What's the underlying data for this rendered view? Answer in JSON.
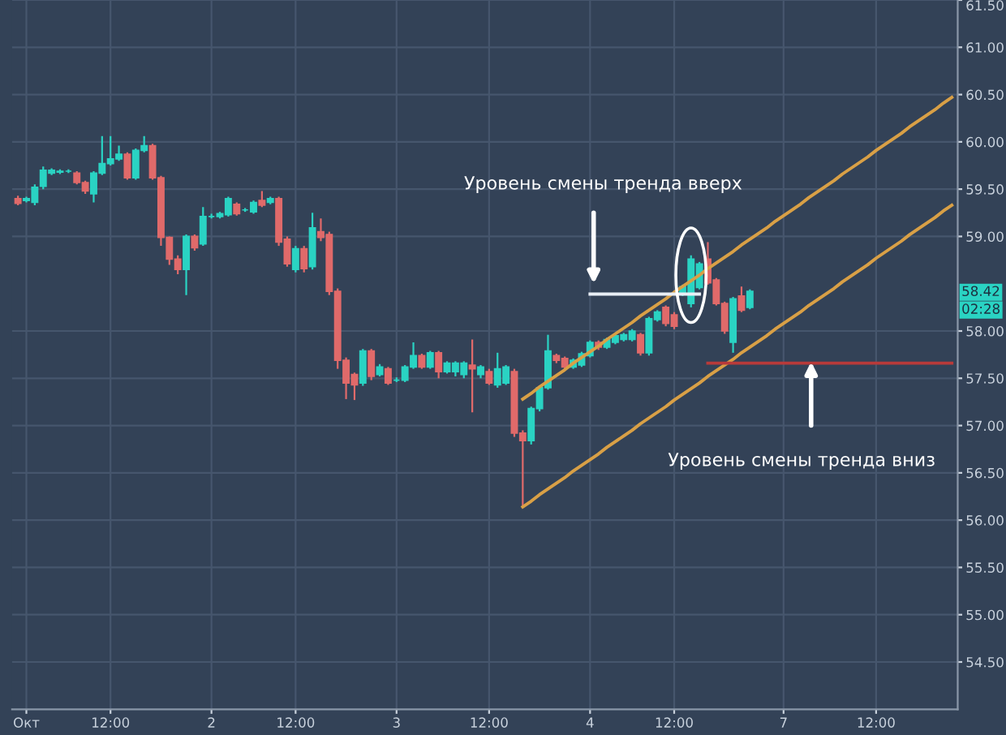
{
  "chart_data": {
    "type": "candlestick",
    "categories": [
      null,
      "Окт",
      null,
      null,
      null,
      null,
      null,
      null,
      null,
      null,
      null,
      "12:00",
      null,
      null,
      null,
      null,
      null,
      null,
      null,
      null,
      null,
      null,
      null,
      "2",
      null,
      null,
      null,
      null,
      null,
      null,
      null,
      null,
      null,
      "12:00",
      null,
      null,
      null,
      null,
      null,
      null,
      null,
      null,
      null,
      null,
      null,
      "3",
      null,
      null,
      null,
      null,
      null,
      null,
      null,
      null,
      null,
      null,
      "12:00",
      null,
      null,
      null,
      null,
      null,
      null,
      null,
      null,
      null,
      null,
      null,
      "4",
      null,
      null,
      null,
      null,
      null,
      null,
      null,
      null,
      null,
      "12:00",
      null,
      null,
      null,
      null,
      null,
      null,
      null,
      null,
      null,
      null,
      null,
      null,
      "7",
      null,
      null,
      null,
      null,
      null,
      null,
      null,
      null,
      null,
      null,
      "12:00",
      null,
      null,
      null,
      null,
      null,
      null,
      null,
      null,
      null
    ],
    "ohlc": [
      [
        59.4,
        59.43,
        59.33,
        59.35
      ],
      [
        59.38,
        59.42,
        59.36,
        59.4
      ],
      [
        59.36,
        59.55,
        59.33,
        59.52
      ],
      [
        59.53,
        59.74,
        59.5,
        59.7
      ],
      [
        59.67,
        59.72,
        59.65,
        59.7
      ],
      [
        59.68,
        59.71,
        59.66,
        59.69
      ],
      [
        59.69,
        59.71,
        59.67,
        59.69
      ],
      [
        59.67,
        59.69,
        59.55,
        59.57
      ],
      [
        59.57,
        59.59,
        59.45,
        59.48
      ],
      [
        59.45,
        59.69,
        59.36,
        59.67
      ],
      [
        59.67,
        60.06,
        59.65,
        59.77
      ],
      [
        59.77,
        60.06,
        59.75,
        59.82
      ],
      [
        59.82,
        59.96,
        59.8,
        59.87
      ],
      [
        59.87,
        59.89,
        59.6,
        59.62
      ],
      [
        59.62,
        59.93,
        59.6,
        59.91
      ],
      [
        59.91,
        60.06,
        59.89,
        59.96
      ],
      [
        59.96,
        59.98,
        59.6,
        59.62
      ],
      [
        59.62,
        59.64,
        58.9,
        58.99
      ],
      [
        58.99,
        59.0,
        58.7,
        58.76
      ],
      [
        58.76,
        58.8,
        58.6,
        58.65
      ],
      [
        58.65,
        59.02,
        58.38,
        59.0
      ],
      [
        59.0,
        59.02,
        58.85,
        58.88
      ],
      [
        58.92,
        59.31,
        58.9,
        59.21
      ],
      [
        59.21,
        59.24,
        59.19,
        59.21
      ],
      [
        59.21,
        59.26,
        59.19,
        59.24
      ],
      [
        59.23,
        59.42,
        59.21,
        59.4
      ],
      [
        59.34,
        59.36,
        59.22,
        59.24
      ],
      [
        59.28,
        59.3,
        59.26,
        59.28
      ],
      [
        59.26,
        59.38,
        59.24,
        59.36
      ],
      [
        59.38,
        59.48,
        59.31,
        59.33
      ],
      [
        59.36,
        59.42,
        59.34,
        59.4
      ],
      [
        59.4,
        59.42,
        58.9,
        58.94
      ],
      [
        58.97,
        59.0,
        58.68,
        58.71
      ],
      [
        58.65,
        58.9,
        58.62,
        58.87
      ],
      [
        58.87,
        58.9,
        58.62,
        58.66
      ],
      [
        58.68,
        59.25,
        58.65,
        59.09
      ],
      [
        59.05,
        59.19,
        58.95,
        58.99
      ],
      [
        59.02,
        59.05,
        58.38,
        58.42
      ],
      [
        58.42,
        58.45,
        57.6,
        57.69
      ],
      [
        57.69,
        57.72,
        57.28,
        57.45
      ],
      [
        57.54,
        57.56,
        57.27,
        57.43
      ],
      [
        57.45,
        57.81,
        57.42,
        57.79
      ],
      [
        57.79,
        57.81,
        57.48,
        57.52
      ],
      [
        57.54,
        57.65,
        57.52,
        57.62
      ],
      [
        57.6,
        57.62,
        57.43,
        57.45
      ],
      [
        57.48,
        57.51,
        57.46,
        57.48
      ],
      [
        57.48,
        57.64,
        57.46,
        57.62
      ],
      [
        57.62,
        57.88,
        57.6,
        57.74
      ],
      [
        57.74,
        57.76,
        57.6,
        57.62
      ],
      [
        57.62,
        57.79,
        57.6,
        57.77
      ],
      [
        57.77,
        57.79,
        57.5,
        57.57
      ],
      [
        57.57,
        57.68,
        57.55,
        57.66
      ],
      [
        57.57,
        57.68,
        57.52,
        57.66
      ],
      [
        57.54,
        57.68,
        57.5,
        57.66
      ],
      [
        57.64,
        57.91,
        57.14,
        57.6
      ],
      [
        57.54,
        57.64,
        57.5,
        57.62
      ],
      [
        57.57,
        57.6,
        57.43,
        57.45
      ],
      [
        57.43,
        57.77,
        57.4,
        57.6
      ],
      [
        57.45,
        57.64,
        57.43,
        57.62
      ],
      [
        57.57,
        57.6,
        56.88,
        56.92
      ],
      [
        56.92,
        56.95,
        56.15,
        56.84
      ],
      [
        56.84,
        57.2,
        56.8,
        57.18
      ],
      [
        57.18,
        57.42,
        57.15,
        57.4
      ],
      [
        57.4,
        57.96,
        57.38,
        57.79
      ],
      [
        57.74,
        57.76,
        57.66,
        57.69
      ],
      [
        57.71,
        57.73,
        57.6,
        57.62
      ],
      [
        57.62,
        57.71,
        57.6,
        57.69
      ],
      [
        57.64,
        57.78,
        57.62,
        57.76
      ],
      [
        57.74,
        57.9,
        57.72,
        57.88
      ],
      [
        57.88,
        57.9,
        57.8,
        57.83
      ],
      [
        57.83,
        57.93,
        57.81,
        57.91
      ],
      [
        57.88,
        57.97,
        57.86,
        57.95
      ],
      [
        57.91,
        57.98,
        57.89,
        57.96
      ],
      [
        57.91,
        58.02,
        57.89,
        58.0
      ],
      [
        57.96,
        57.98,
        57.74,
        57.77
      ],
      [
        57.77,
        58.15,
        57.74,
        58.13
      ],
      [
        58.12,
        58.22,
        58.1,
        58.2
      ],
      [
        58.25,
        58.27,
        58.05,
        58.08
      ],
      [
        58.17,
        58.2,
        58.02,
        58.05
      ],
      [
        58.39,
        58.49,
        58.37,
        58.47
      ],
      [
        58.29,
        58.8,
        58.25,
        58.76
      ],
      [
        58.46,
        58.73,
        58.44,
        58.71
      ],
      [
        58.76,
        58.94,
        58.49,
        58.51
      ],
      [
        58.54,
        58.56,
        58.27,
        58.29
      ],
      [
        58.29,
        58.31,
        57.97,
        58.0
      ],
      [
        57.88,
        58.36,
        57.77,
        58.34
      ],
      [
        58.37,
        58.47,
        58.2,
        58.22
      ],
      [
        58.25,
        58.44,
        58.23,
        58.42
      ],
      null,
      null,
      null,
      null,
      null,
      null,
      null,
      null,
      null,
      null,
      null,
      null,
      null,
      null,
      null,
      null,
      null,
      null,
      null,
      null,
      null,
      null,
      null,
      null
    ],
    "colors": [
      "#e06a6a",
      "#2ad3c3",
      "#2ad3c3",
      "#2ad3c3",
      "#2ad3c3",
      "#2ad3c3",
      "#2ad3c3",
      "#e06a6a",
      "#e06a6a",
      "#2ad3c3",
      "#2ad3c3",
      "#2ad3c3",
      "#2ad3c3",
      "#e06a6a",
      "#2ad3c3",
      "#2ad3c3",
      "#e06a6a",
      "#e06a6a",
      "#e06a6a",
      "#e06a6a",
      "#2ad3c3",
      "#e06a6a",
      "#2ad3c3",
      "#2ad3c3",
      "#2ad3c3",
      "#2ad3c3",
      "#e06a6a",
      "#2ad3c3",
      "#2ad3c3",
      "#e06a6a",
      "#2ad3c3",
      "#e06a6a",
      "#e06a6a",
      "#2ad3c3",
      "#e06a6a",
      "#2ad3c3",
      "#e06a6a",
      "#e06a6a",
      "#e06a6a",
      "#e06a6a",
      "#e06a6a",
      "#2ad3c3",
      "#e06a6a",
      "#2ad3c3",
      "#e06a6a",
      "#2ad3c3",
      "#2ad3c3",
      "#2ad3c3",
      "#e06a6a",
      "#2ad3c3",
      "#e06a6a",
      "#2ad3c3",
      "#2ad3c3",
      "#2ad3c3",
      "#e06a6a",
      "#2ad3c3",
      "#e06a6a",
      "#2ad3c3",
      "#2ad3c3",
      "#e06a6a",
      "#e06a6a",
      "#2ad3c3",
      "#2ad3c3",
      "#2ad3c3",
      "#e06a6a",
      "#e06a6a",
      "#2ad3c3",
      "#2ad3c3",
      "#2ad3c3",
      "#e06a6a",
      "#2ad3c3",
      "#2ad3c3",
      "#2ad3c3",
      "#2ad3c3",
      "#e06a6a",
      "#2ad3c3",
      "#2ad3c3",
      "#e06a6a",
      "#e06a6a",
      "#2ad3c3",
      "#2ad3c3",
      "#2ad3c3",
      "#e06a6a",
      "#e06a6a",
      "#e06a6a",
      "#2ad3c3",
      "#e06a6a",
      "#2ad3c3",
      null,
      null,
      null,
      null,
      null,
      null,
      null,
      null,
      null,
      null,
      null,
      null,
      null,
      null,
      null,
      null,
      null,
      null,
      null,
      null,
      null,
      null,
      null,
      null
    ],
    "series": [
      {
        "type": "line",
        "color": "#d9a046",
        "values": [
          null,
          null,
          null,
          null,
          null,
          null,
          null,
          null,
          null,
          null,
          null,
          null,
          null,
          null,
          null,
          null,
          null,
          null,
          null,
          null,
          null,
          null,
          null,
          null,
          null,
          null,
          null,
          null,
          null,
          null,
          null,
          null,
          null,
          null,
          null,
          null,
          null,
          null,
          null,
          null,
          null,
          null,
          null,
          null,
          null,
          null,
          null,
          null,
          null,
          null,
          null,
          null,
          null,
          null,
          null,
          null,
          null,
          null,
          null,
          null,
          57.28,
          57.34,
          57.41,
          57.47,
          57.53,
          57.59,
          57.66,
          57.72,
          57.78,
          57.84,
          57.91,
          57.97,
          58.03,
          58.09,
          58.16,
          58.22,
          58.28,
          58.34,
          58.41,
          58.47,
          58.53,
          58.59,
          58.66,
          58.72,
          58.78,
          58.84,
          58.91,
          58.97,
          59.03,
          59.09,
          59.16,
          59.22,
          59.28,
          59.34,
          59.41,
          59.47,
          59.53,
          59.59,
          59.66,
          59.72,
          59.78,
          59.84,
          59.91,
          59.97,
          60.03,
          60.09,
          60.16,
          60.22,
          60.28,
          60.34,
          60.41,
          60.47
        ]
      },
      {
        "type": "line",
        "color": "#d9a046",
        "values": [
          null,
          null,
          null,
          null,
          null,
          null,
          null,
          null,
          null,
          null,
          null,
          null,
          null,
          null,
          null,
          null,
          null,
          null,
          null,
          null,
          null,
          null,
          null,
          null,
          null,
          null,
          null,
          null,
          null,
          null,
          null,
          null,
          null,
          null,
          null,
          null,
          null,
          null,
          null,
          null,
          null,
          null,
          null,
          null,
          null,
          null,
          null,
          null,
          null,
          null,
          null,
          null,
          null,
          null,
          null,
          null,
          null,
          null,
          null,
          null,
          56.14,
          56.2,
          56.27,
          56.33,
          56.39,
          56.45,
          56.52,
          56.58,
          56.64,
          56.7,
          56.77,
          56.83,
          56.89,
          56.95,
          57.02,
          57.08,
          57.14,
          57.2,
          57.27,
          57.33,
          57.39,
          57.45,
          57.52,
          57.58,
          57.64,
          57.7,
          57.77,
          57.83,
          57.89,
          57.95,
          58.02,
          58.08,
          58.14,
          58.2,
          58.27,
          58.33,
          58.39,
          58.45,
          58.52,
          58.58,
          58.64,
          58.7,
          58.77,
          58.83,
          58.89,
          58.95,
          59.02,
          59.08,
          59.14,
          59.2,
          59.27,
          59.33
        ]
      },
      {
        "type": "line",
        "color": "#e8eef5",
        "values": [
          null,
          null,
          null,
          null,
          null,
          null,
          null,
          null,
          null,
          null,
          null,
          null,
          null,
          null,
          null,
          null,
          null,
          null,
          null,
          null,
          null,
          null,
          null,
          null,
          null,
          null,
          null,
          null,
          null,
          null,
          null,
          null,
          null,
          null,
          null,
          null,
          null,
          null,
          null,
          null,
          null,
          null,
          null,
          null,
          null,
          null,
          null,
          null,
          null,
          null,
          null,
          null,
          null,
          null,
          null,
          null,
          null,
          null,
          null,
          null,
          null,
          null,
          null,
          null,
          null,
          null,
          null,
          null,
          58.39,
          58.39,
          58.39,
          58.39,
          58.39,
          58.39,
          58.39,
          58.39,
          58.39,
          58.39,
          58.39,
          58.39,
          58.39,
          58.39,
          null,
          null,
          null,
          null,
          null,
          null,
          null,
          null,
          null,
          null,
          null,
          null,
          null,
          null,
          null,
          null,
          null,
          null,
          null,
          null,
          null,
          null,
          null,
          null,
          null,
          null,
          null,
          null,
          null,
          null
        ]
      },
      {
        "type": "line",
        "color": "#b83a3a",
        "values": [
          null,
          null,
          null,
          null,
          null,
          null,
          null,
          null,
          null,
          null,
          null,
          null,
          null,
          null,
          null,
          null,
          null,
          null,
          null,
          null,
          null,
          null,
          null,
          null,
          null,
          null,
          null,
          null,
          null,
          null,
          null,
          null,
          null,
          null,
          null,
          null,
          null,
          null,
          null,
          null,
          null,
          null,
          null,
          null,
          null,
          null,
          null,
          null,
          null,
          null,
          null,
          null,
          null,
          null,
          null,
          null,
          null,
          null,
          null,
          null,
          null,
          null,
          null,
          null,
          null,
          null,
          null,
          null,
          null,
          null,
          null,
          null,
          null,
          null,
          null,
          null,
          null,
          null,
          null,
          null,
          null,
          null,
          57.66,
          57.66,
          57.66,
          57.66,
          57.66,
          57.66,
          57.66,
          57.66,
          57.66,
          57.66,
          57.66,
          57.66,
          57.66,
          57.66,
          57.66,
          57.66,
          57.66,
          57.66,
          57.66,
          57.66,
          57.66,
          57.66,
          57.66,
          57.66,
          57.66,
          57.66,
          57.66,
          57.66,
          57.66,
          57.66
        ]
      }
    ],
    "ylim": [
      54.0,
      61.5
    ],
    "yticks": [
      {
        "value": 54.5,
        "label": "54.50"
      },
      {
        "value": 55.0,
        "label": "55.00"
      },
      {
        "value": 55.5,
        "label": "55.50"
      },
      {
        "value": 56.0,
        "label": "56.00"
      },
      {
        "value": 56.5,
        "label": "56.50"
      },
      {
        "value": 57.0,
        "label": "57.00"
      },
      {
        "value": 57.5,
        "label": "57.50"
      },
      {
        "value": 58.0,
        "label": "58.00"
      },
      {
        "value": 59.0,
        "label": "59.00"
      },
      {
        "value": 59.5,
        "label": "59.50"
      },
      {
        "value": 60.0,
        "label": "60.00"
      },
      {
        "value": 60.5,
        "label": "60.50"
      },
      {
        "value": 61.0,
        "label": "61.00"
      },
      {
        "value": 61.5,
        "label": "61.50"
      }
    ],
    "annotations": [
      "Уровень смены тренда вверх",
      "Уровень смены тренда вниз",
      "58.42",
      "02:28"
    ],
    "grid": true,
    "legend": false
  }
}
